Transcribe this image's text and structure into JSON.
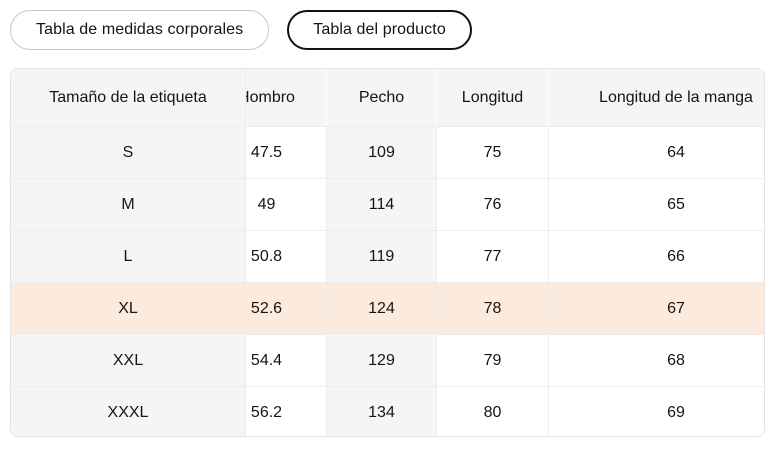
{
  "tabs": {
    "body_measures_label": "Tabla de medidas corporales",
    "product_table_label": "Tabla del producto",
    "selected": "Tabla del producto"
  },
  "table": {
    "columns": [
      "Tamaño de la etiqueta",
      "Hombro",
      "Pecho",
      "Longitud",
      "Longitud de la manga"
    ],
    "rows": [
      {
        "label": "S",
        "values": [
          "47.5",
          "109",
          "75",
          "64"
        ]
      },
      {
        "label": "M",
        "values": [
          "49",
          "114",
          "76",
          "65"
        ]
      },
      {
        "label": "L",
        "values": [
          "50.8",
          "119",
          "77",
          "66"
        ]
      },
      {
        "label": "XL",
        "values": [
          "52.6",
          "124",
          "78",
          "67"
        ]
      },
      {
        "label": "XXL",
        "values": [
          "54.4",
          "129",
          "79",
          "68"
        ]
      },
      {
        "label": "XXXL",
        "values": [
          "56.2",
          "134",
          "80",
          "69"
        ]
      }
    ],
    "highlighted_row": "XL",
    "colors": {
      "highlight": "#fcebdd",
      "header_bg": "#f5f5f6",
      "selected_tab_border": "#121212"
    }
  }
}
